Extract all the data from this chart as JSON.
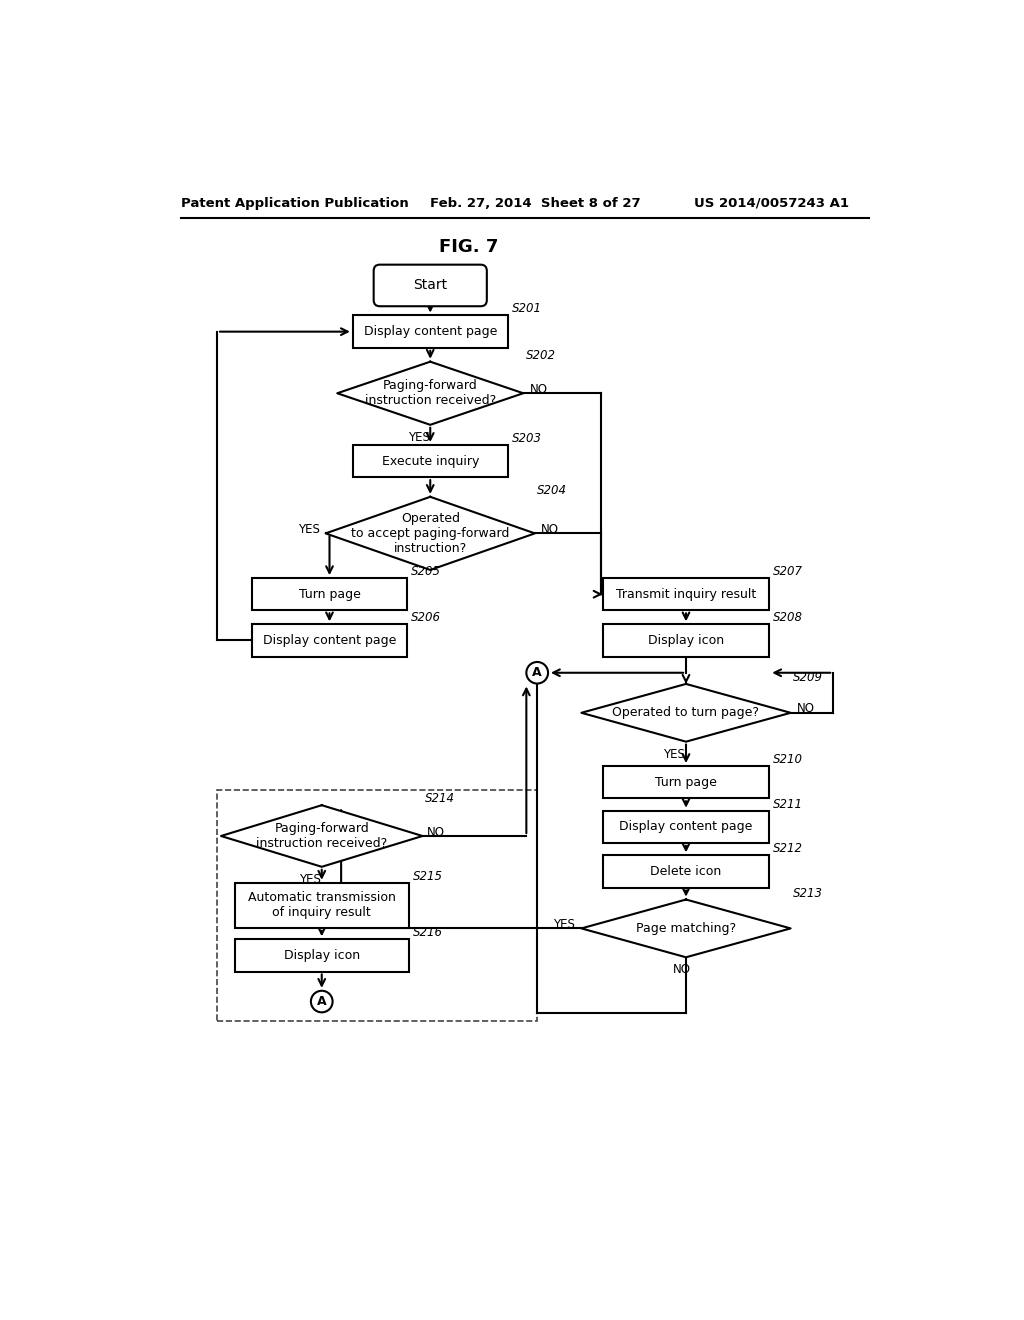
{
  "title": "FIG. 7",
  "header_left": "Patent Application Publication",
  "header_mid": "Feb. 27, 2014  Sheet 8 of 27",
  "header_right": "US 2014/0057243 A1",
  "background_color": "#ffffff"
}
